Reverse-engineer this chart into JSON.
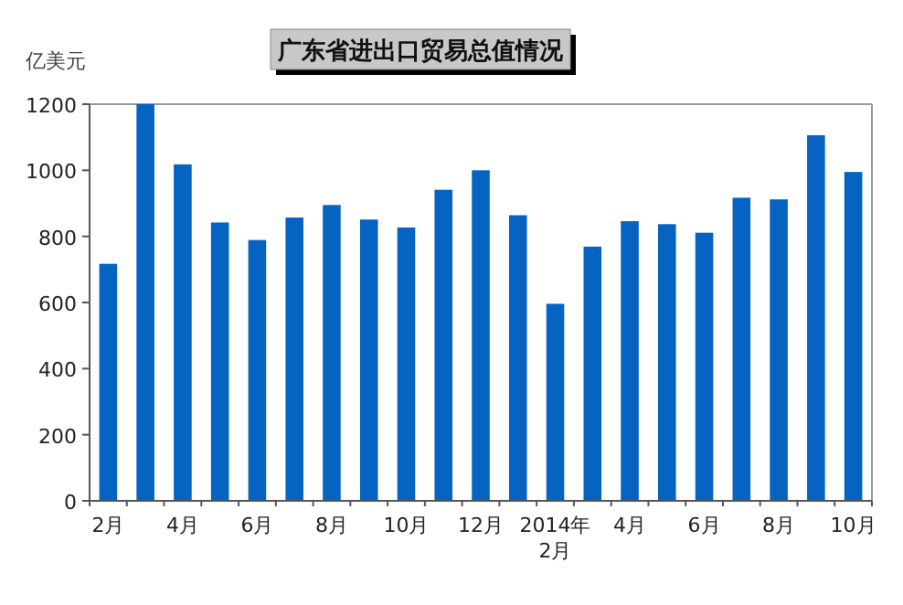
{
  "chart_data": {
    "type": "bar",
    "title": "广东省进出口贸易总值情况",
    "ylabel": "亿美元",
    "categories": [
      "2月",
      null,
      "4月",
      null,
      "6月",
      null,
      "8月",
      null,
      "10月",
      null,
      "12月",
      null,
      "2014年\n2月",
      null,
      "4月",
      null,
      "6月",
      null,
      "8月",
      null,
      "10月"
    ],
    "values": [
      717,
      1200,
      1018,
      842,
      789,
      857,
      895,
      851,
      827,
      941,
      1000,
      864,
      596,
      769,
      846,
      837,
      811,
      917,
      912,
      1106,
      995
    ],
    "color": "#0563c1",
    "ylim": [
      0,
      1200
    ],
    "yticks": [
      0,
      200,
      400,
      600,
      800,
      1000,
      1200
    ],
    "grid": false
  }
}
